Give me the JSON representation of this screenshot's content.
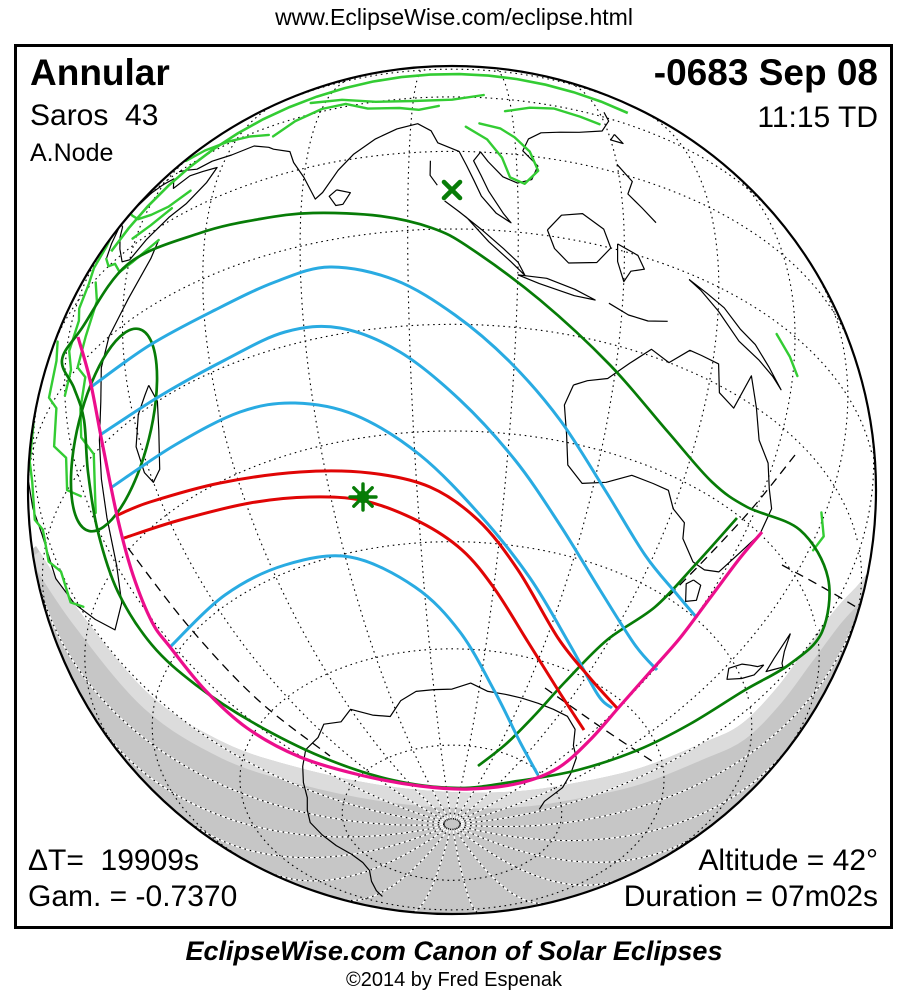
{
  "header": {
    "url": "www.EclipseWise.com/eclipse.html"
  },
  "info": {
    "type": "Annular",
    "saros": "Saros  43",
    "node": "A.Node",
    "date": "-0683 Sep 08",
    "time": "11:15 TD",
    "delta_t": "ΔT=  19909s",
    "gamma": "Gam. = -0.7370",
    "altitude": "Altitude = 42°",
    "duration": "Duration = 07m02s"
  },
  "footer": {
    "title": "EclipseWise.com Canon of Solar Eclipses",
    "copyright": "©2014 by Fred Espenak"
  },
  "map": {
    "colors": {
      "coastline": "#000000",
      "eclipse_region_coastline": "#33cc33",
      "penumbral_limit": "#077c07",
      "eclipse_magnitude_contours": "#29abe2",
      "sunrise_sunset_curve": "#ec0e8c",
      "path_of_annularity": "#e00505",
      "night_region": "#c6c6c6",
      "twilight_band": "#dcdcdc",
      "graticule": "#000000"
    },
    "markers": {
      "greatest_eclipse": "asterisk-marker",
      "sub_solar_point": "x-marker"
    }
  }
}
